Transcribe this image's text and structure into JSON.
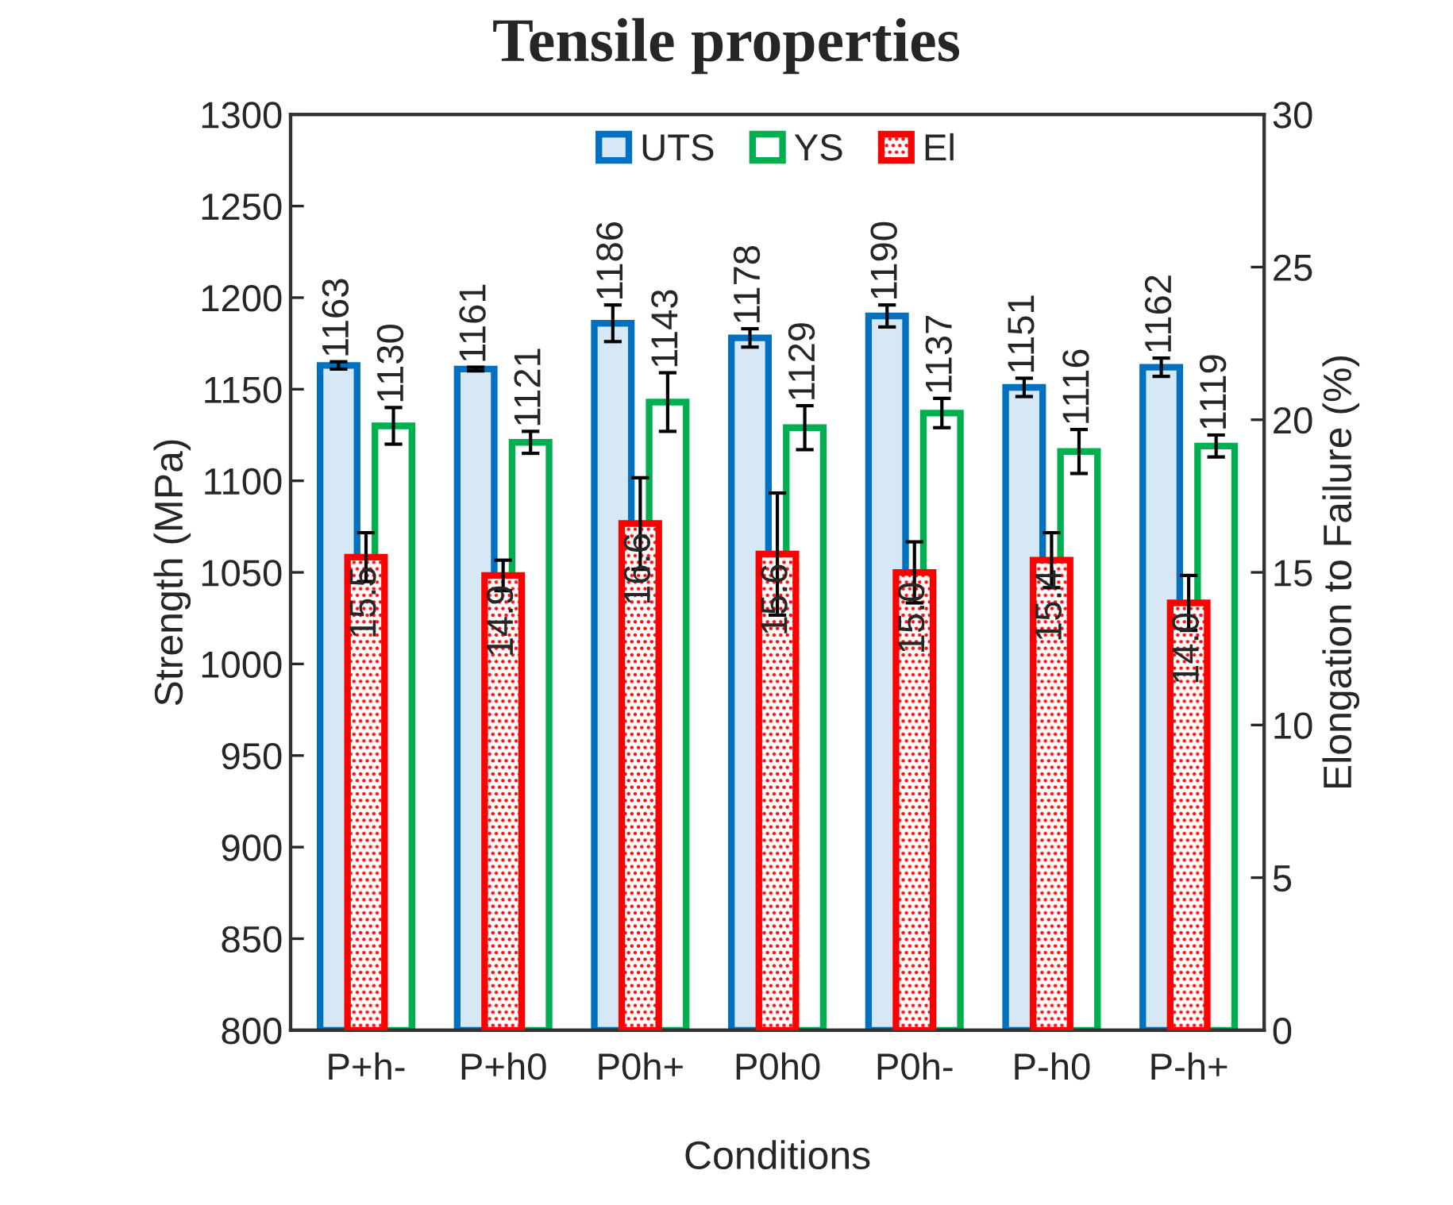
{
  "chart_data": {
    "type": "bar",
    "title": "Tensile properties",
    "xlabel": "Conditions",
    "ylabel": "Strength (MPa)",
    "y2label": "Elongation to Failure (%)",
    "categories": [
      "P+h-",
      "P+h0",
      "P0h+",
      "P0h0",
      "P0h-",
      "P-h0",
      "P-h+"
    ],
    "series": [
      {
        "name": "UTS",
        "color": "#0070c0",
        "values": [
          1163,
          1161,
          1186,
          1178,
          1190,
          1151,
          1162
        ],
        "errors": [
          2,
          1,
          10,
          5,
          6,
          5,
          5
        ],
        "value_labels": [
          "1163",
          "1161",
          "1186",
          "1178",
          "1190",
          "1151",
          "1162"
        ]
      },
      {
        "name": "YS",
        "color": "#00b050",
        "values": [
          1130,
          1121,
          1143,
          1129,
          1137,
          1116,
          1119
        ],
        "errors": [
          10,
          6,
          16,
          12,
          8,
          12,
          6
        ],
        "value_labels": [
          "1130",
          "1121",
          "1143",
          "1129",
          "1137",
          "1116",
          "1119"
        ]
      },
      {
        "name": "El",
        "color": "#ff0000",
        "axis": "y2",
        "values": [
          15.5,
          14.9,
          16.6,
          15.6,
          15.0,
          15.4,
          14.0
        ],
        "errors": [
          0.8,
          0.5,
          1.5,
          2.0,
          1.0,
          0.9,
          0.9
        ],
        "value_labels": [
          "15.5",
          "14.9",
          "16.6",
          "15.6",
          "15.0",
          "15.4",
          "14.0"
        ]
      }
    ],
    "ylim": [
      800,
      1300
    ],
    "yticks": [
      800,
      850,
      900,
      950,
      1000,
      1050,
      1100,
      1150,
      1200,
      1250,
      1300
    ],
    "y2lim": [
      0,
      30
    ],
    "y2ticks": [
      0,
      5,
      10,
      15,
      20,
      25,
      30
    ],
    "data_labels": true,
    "legend": "top",
    "grid": false
  }
}
